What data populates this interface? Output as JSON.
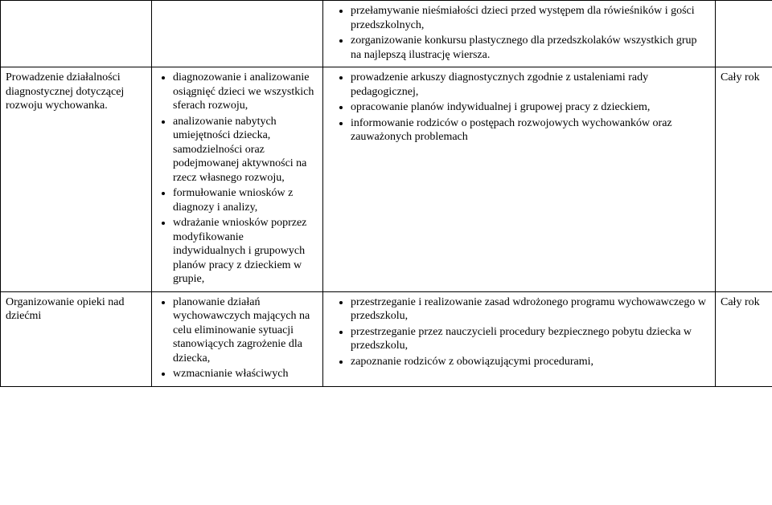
{
  "table": {
    "border_color": "#000000",
    "background": "#ffffff",
    "text_color": "#000000",
    "font_family": "Times New Roman",
    "font_size_pt": 11,
    "rows": [
      {
        "c1": "",
        "c2_items": [],
        "c3_items": [
          "przełamywanie nieśmiałości dzieci przed występem dla rówieśników i gości przedszkolnych,",
          "zorganizowanie konkursu plastycznego dla przedszkolaków wszystkich grup na najlepszą ilustrację wiersza."
        ],
        "c4": ""
      },
      {
        "c1": "Prowadzenie działalności diagnostycznej dotyczącej rozwoju wychowanka.",
        "c2_items": [
          "diagnozowanie  i analizowanie osiągnięć dzieci we wszystkich sferach rozwoju,",
          "analizowanie nabytych umiejętności dziecka, samodzielności oraz podejmowanej aktywności na rzecz własnego rozwoju,",
          "formułowanie wniosków z diagnozy i analizy,",
          "wdrażanie wniosków poprzez modyfikowanie indywidualnych i grupowych planów pracy z dzieckiem w grupie,"
        ],
        "c3_items": [
          "prowadzenie arkuszy diagnostycznych zgodnie z ustaleniami rady pedagogicznej,",
          "opracowanie planów indywidualnej i grupowej pracy z dzieckiem,",
          "informowanie rodziców o postępach rozwojowych wychowanków oraz zauważonych problemach"
        ],
        "c4": "Cały rok"
      },
      {
        "c1": "Organizowanie opieki nad dziećmi",
        "c2_items": [
          "planowanie działań wychowawczych mających na celu eliminowanie sytuacji stanowiących zagrożenie dla dziecka,",
          "wzmacnianie właściwych"
        ],
        "c3_items": [
          "przestrzeganie i realizowanie zasad wdrożonego programu wychowawczego w przedszkolu,",
          "przestrzeganie przez nauczycieli procedury bezpiecznego pobytu dziecka w przedszkolu,",
          "zapoznanie rodziców z obowiązującymi procedurami,"
        ],
        "c4": "Cały rok"
      }
    ]
  }
}
